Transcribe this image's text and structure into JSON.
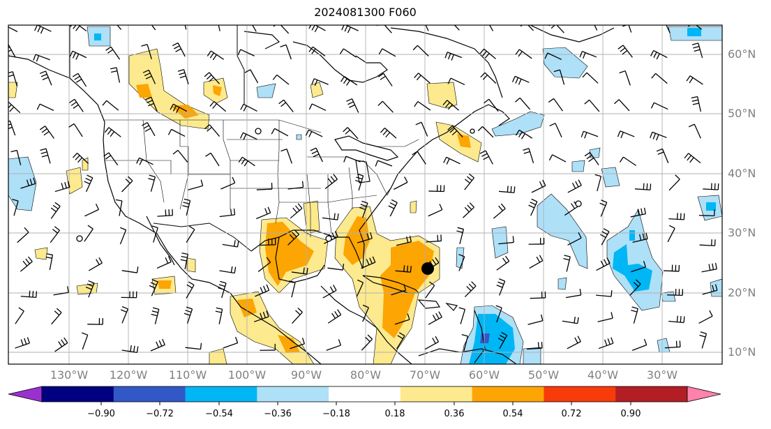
{
  "title": "2024081300 F060",
  "map": {
    "projection": "plate carree",
    "lon_range": [
      -145,
      -24
    ],
    "lat_range": [
      8,
      65
    ],
    "gridlines": true,
    "wind_barbs": true,
    "features": [
      "coastlines",
      "country borders",
      "US state borders"
    ],
    "positive_color": "#fdea8e",
    "negative_color": "#aee0f8"
  },
  "lon_ticks": [
    "130°W",
    "120°W",
    "110°W",
    "100°W",
    "90°W",
    "80°W",
    "70°W",
    "60°W",
    "50°W",
    "40°W",
    "30°W"
  ],
  "lat_ticks": [
    "60°N",
    "50°N",
    "40°N",
    "30°N",
    "20°N",
    "10°N"
  ],
  "colorbar": {
    "extend": "both",
    "ticks": [
      "−0.90",
      "−0.72",
      "−0.54",
      "−0.36",
      "−0.18",
      "0.18",
      "0.36",
      "0.54",
      "0.72",
      "0.90"
    ],
    "colors": [
      "#9b30d0",
      "#000080",
      "#3258c8",
      "#00b6f5",
      "#aee0f8",
      "#ffffff",
      "#fdea8e",
      "#fca503",
      "#f83b0a",
      "#b21e24",
      "#ff82ab"
    ]
  }
}
